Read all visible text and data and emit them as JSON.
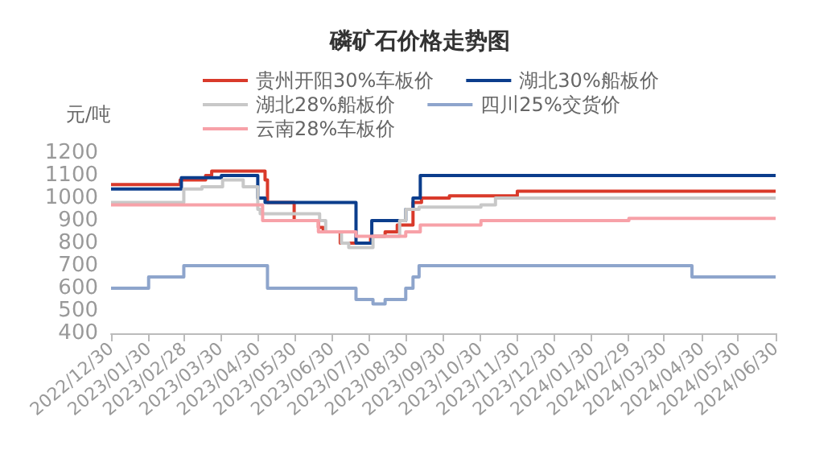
{
  "chart_data": {
    "type": "step",
    "title": "磷矿石价格走势图",
    "ylabel": "元/吨",
    "legend": "top",
    "xlim": [
      "2022-12-30",
      "2024-06-30"
    ],
    "xticks": [
      {
        "value": "2022-12-30",
        "label": "2022/12/30"
      },
      {
        "value": "2023-01-30",
        "label": "2023/01/30"
      },
      {
        "value": "2023-02-28",
        "label": "2023/02/28"
      },
      {
        "value": "2023-03-30",
        "label": "2023/03/30"
      },
      {
        "value": "2023-04-30",
        "label": "2023/04/30"
      },
      {
        "value": "2023-05-30",
        "label": "2023/05/30"
      },
      {
        "value": "2023-06-30",
        "label": "2023/06/30"
      },
      {
        "value": "2023-07-30",
        "label": "2023/07/30"
      },
      {
        "value": "2023-08-30",
        "label": "2023/08/30"
      },
      {
        "value": "2023-09-30",
        "label": "2023/09/30"
      },
      {
        "value": "2023-10-30",
        "label": "2023/10/30"
      },
      {
        "value": "2023-11-30",
        "label": "2023/11/30"
      },
      {
        "value": "2023-12-30",
        "label": "2023/12/30"
      },
      {
        "value": "2024-01-30",
        "label": "2024/01/30"
      },
      {
        "value": "2024-02-29",
        "label": "2024/02/29"
      },
      {
        "value": "2024-03-30",
        "label": "2024/03/30"
      },
      {
        "value": "2024-04-30",
        "label": "2024/04/30"
      },
      {
        "value": "2024-05-30",
        "label": "2024/05/30"
      },
      {
        "value": "2024-06-30",
        "label": "2024/06/30"
      }
    ],
    "ylim": [
      400,
      1200
    ],
    "yticks": [
      400,
      500,
      600,
      700,
      800,
      900,
      1000,
      1100,
      1200
    ],
    "series": [
      {
        "name": "贵州开阳30%车板价",
        "color": "#d93a2b",
        "x": [
          "2022-12-30",
          "2023-02-25",
          "2023-03-18",
          "2023-03-23",
          "2023-05-06",
          "2023-05-08",
          "2023-05-30",
          "2023-06-19",
          "2023-06-23",
          "2023-07-07",
          "2023-08-01",
          "2023-08-13",
          "2023-08-23",
          "2023-09-05",
          "2023-09-12",
          "2023-10-05",
          "2023-11-30",
          "2024-06-30"
        ],
        "values": [
          1060,
          1080,
          1100,
          1120,
          1080,
          980,
          900,
          870,
          850,
          800,
          830,
          850,
          880,
          980,
          1000,
          1010,
          1030,
          1030
        ]
      },
      {
        "name": "湖北30%船板价",
        "color": "#0b3d8c",
        "x": [
          "2022-12-30",
          "2023-02-26",
          "2023-03-31",
          "2023-04-30",
          "2023-05-06",
          "2023-07-20",
          "2023-08-02",
          "2023-08-30",
          "2023-09-05",
          "2023-09-11",
          "2024-06-30"
        ],
        "values": [
          1040,
          1090,
          1100,
          1000,
          980,
          800,
          900,
          950,
          1000,
          1100,
          1100
        ]
      },
      {
        "name": "湖北28%船板价",
        "color": "#c8c8c8",
        "x": [
          "2022-12-30",
          "2023-02-28",
          "2023-03-15",
          "2023-04-01",
          "2023-04-18",
          "2023-04-30",
          "2023-05-02",
          "2023-06-20",
          "2023-06-25",
          "2023-07-08",
          "2023-07-14",
          "2023-08-03",
          "2023-08-25",
          "2023-08-30",
          "2023-09-10",
          "2023-10-31",
          "2023-11-12",
          "2024-06-30"
        ],
        "values": [
          980,
          1040,
          1050,
          1080,
          1050,
          950,
          930,
          900,
          850,
          800,
          780,
          830,
          900,
          950,
          960,
          970,
          1000,
          1000
        ]
      },
      {
        "name": "四川25%交货价",
        "color": "#8ea5cc",
        "x": [
          "2022-12-30",
          "2023-01-30",
          "2023-02-28",
          "2023-05-08",
          "2023-07-20",
          "2023-08-03",
          "2023-08-13",
          "2023-08-30",
          "2023-09-05",
          "2023-09-10",
          "2024-04-22",
          "2024-06-30"
        ],
        "values": [
          600,
          650,
          700,
          600,
          550,
          530,
          550,
          600,
          650,
          700,
          650,
          650
        ]
      },
      {
        "name": "云南28%车板价",
        "color": "#f7a1a8",
        "x": [
          "2022-12-30",
          "2023-05-04",
          "2023-06-19",
          "2023-07-20",
          "2023-08-30",
          "2023-09-11",
          "2023-10-31",
          "2024-03-01",
          "2024-06-30"
        ],
        "values": [
          970,
          900,
          850,
          830,
          850,
          880,
          900,
          910,
          910
        ]
      }
    ]
  }
}
